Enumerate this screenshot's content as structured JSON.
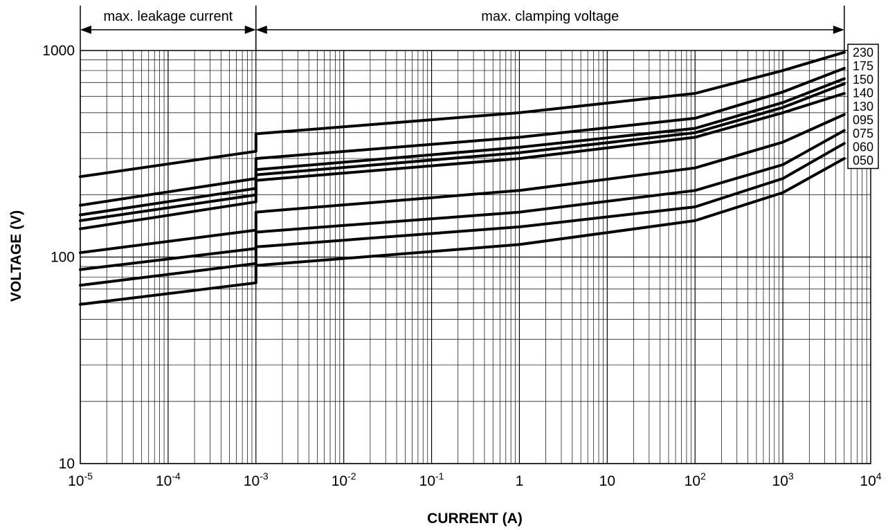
{
  "chart_data": {
    "type": "line",
    "title": "",
    "xlabel": "CURRENT (A)",
    "ylabel": "VOLTAGE (V)",
    "x_scale": "log",
    "y_scale": "log",
    "xlim": [
      1e-05,
      10000
    ],
    "ylim": [
      10,
      1000
    ],
    "grid": true,
    "x_ticks": [
      {
        "base": "10",
        "exp": "-5",
        "value": 1e-05
      },
      {
        "base": "10",
        "exp": "-4",
        "value": 0.0001
      },
      {
        "base": "10",
        "exp": "-3",
        "value": 0.001
      },
      {
        "base": "10",
        "exp": "-2",
        "value": 0.01
      },
      {
        "base": "10",
        "exp": "-1",
        "value": 0.1
      },
      {
        "base": "1",
        "exp": "",
        "value": 1
      },
      {
        "base": "10",
        "exp": "",
        "value": 10
      },
      {
        "base": "10",
        "exp": "2",
        "value": 100
      },
      {
        "base": "10",
        "exp": "3",
        "value": 1000
      },
      {
        "base": "10",
        "exp": "4",
        "value": 10000
      }
    ],
    "y_ticks": [
      {
        "label": "1000",
        "value": 1000
      },
      {
        "label": "100",
        "value": 100
      },
      {
        "label": "10",
        "value": 10
      }
    ],
    "annotations": {
      "leakage": {
        "label": "max. leakage current",
        "from": 1e-05,
        "to": 0.001
      },
      "clamping": {
        "label": "max. clamping voltage",
        "from": 0.001,
        "to": 5000
      }
    },
    "series": [
      {
        "name": "230",
        "x": [
          1e-05,
          0.001,
          0.001,
          1,
          100,
          1000,
          5000
        ],
        "y": [
          245,
          325,
          395,
          500,
          620,
          800,
          980
        ]
      },
      {
        "name": "175",
        "x": [
          1e-05,
          0.001,
          0.001,
          1,
          100,
          1000,
          5000
        ],
        "y": [
          178,
          240,
          300,
          380,
          470,
          630,
          820
        ]
      },
      {
        "name": "150",
        "x": [
          1e-05,
          0.001,
          0.001,
          1,
          100,
          1000,
          5000
        ],
        "y": [
          160,
          215,
          265,
          340,
          420,
          560,
          730
        ]
      },
      {
        "name": "140",
        "x": [
          1e-05,
          0.001,
          0.001,
          1,
          100,
          1000,
          5000
        ],
        "y": [
          150,
          200,
          250,
          320,
          400,
          530,
          690
        ]
      },
      {
        "name": "130",
        "x": [
          1e-05,
          0.001,
          0.001,
          1,
          100,
          1000,
          5000
        ],
        "y": [
          137,
          185,
          235,
          300,
          380,
          500,
          620
        ]
      },
      {
        "name": "095",
        "x": [
          1e-05,
          0.001,
          0.001,
          1,
          100,
          1000,
          5000
        ],
        "y": [
          105,
          135,
          165,
          210,
          270,
          360,
          490
        ]
      },
      {
        "name": "075",
        "x": [
          1e-05,
          0.001,
          0.001,
          1,
          100,
          1000,
          5000
        ],
        "y": [
          87,
          110,
          132,
          165,
          210,
          280,
          410
        ]
      },
      {
        "name": "060",
        "x": [
          1e-05,
          0.001,
          0.001,
          1,
          100,
          1000,
          5000
        ],
        "y": [
          73,
          93,
          112,
          140,
          175,
          240,
          355
        ]
      },
      {
        "name": "050",
        "x": [
          1e-05,
          0.001,
          0.001,
          1,
          100,
          1000,
          5000
        ],
        "y": [
          59,
          75,
          91,
          115,
          150,
          205,
          300
        ]
      }
    ]
  }
}
